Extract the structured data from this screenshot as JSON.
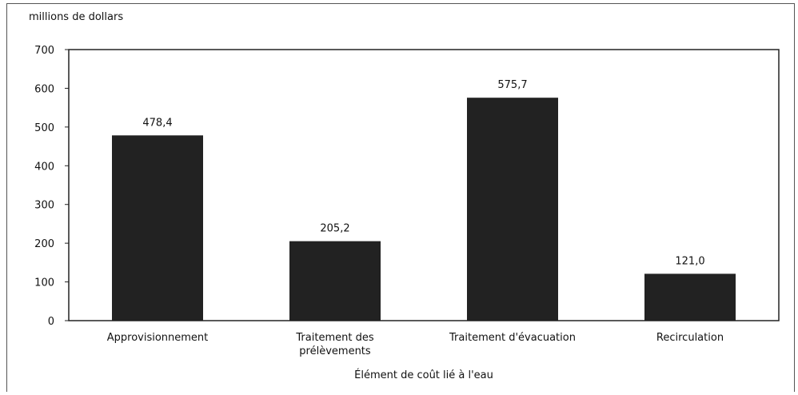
{
  "chart_data": {
    "type": "bar",
    "title": "",
    "ylabel": "millions de dollars",
    "xlabel": "Élément de coût lié à l'eau",
    "categories": [
      "Approvisionnement",
      "Traitement des prélèvements",
      "Traitement d'évacuation",
      "Recirculation"
    ],
    "category_lines": [
      [
        "Approvisionnement"
      ],
      [
        "Traitement des",
        "prélèvements"
      ],
      [
        "Traitement d'évacuation"
      ],
      [
        "Recirculation"
      ]
    ],
    "values": [
      478.4,
      205.2,
      575.7,
      121.0
    ],
    "value_labels": [
      "478,4",
      "205,2",
      "575,7",
      "121,0"
    ],
    "ylim": [
      0,
      700
    ],
    "yticks": [
      0,
      100,
      200,
      300,
      400,
      500,
      600,
      700
    ],
    "bar_color": "#222222",
    "grid": false
  }
}
